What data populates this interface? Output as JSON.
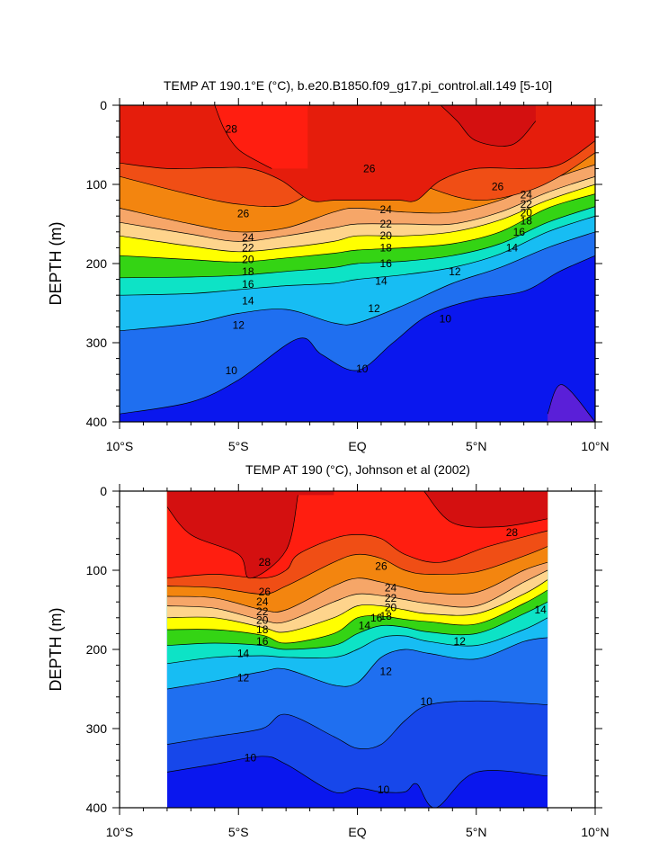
{
  "colors": {
    "levels": [
      "#5a1fd8",
      "#0a17ee",
      "#1747ea",
      "#1f6ff0",
      "#1c98ef",
      "#17bdf3",
      "#11dbee",
      "#0de3c6",
      "#10d673",
      "#34d414",
      "#9bdc15",
      "#ffff00",
      "#ffe36b",
      "#fed48c",
      "#f7bd8c",
      "#f6a668",
      "#f5933c",
      "#f3850f",
      "#f07820",
      "#f04e15",
      "#e51d0c",
      "#ff1e10",
      "#d41010"
    ]
  },
  "chart_data": [
    {
      "type": "contour",
      "title": "TEMP AT 190.1°E (°C), b.e20.B1850.f09_g17.pi_control.all.149 [5-10]",
      "xlabel": "",
      "ylabel": "DEPTH (m)",
      "xlim": [
        -10,
        10
      ],
      "ylim": [
        400,
        0
      ],
      "x_ticks": [
        -10,
        -5,
        0,
        5,
        10
      ],
      "x_tick_labels": [
        "10°S",
        "5°S",
        "EQ",
        "5°N",
        "10°N"
      ],
      "y_ticks": [
        0,
        100,
        200,
        300,
        400
      ],
      "y_tick_labels": [
        "0",
        "100",
        "200",
        "300",
        "400"
      ],
      "data_extent_x": [
        -10,
        10
      ],
      "levels": [
        9,
        10,
        11,
        12,
        13,
        14,
        15,
        16,
        17,
        18,
        19,
        20,
        21,
        22,
        23,
        24,
        25,
        26,
        27,
        28
      ],
      "contours": [
        {
          "level": 28,
          "x": [
            -6,
            -5.6,
            -5,
            -4,
            -3.6
          ],
          "y": [
            0,
            30,
            56,
            74,
            80
          ],
          "x2": [
            3.5,
            4.2,
            5,
            6.5,
            7.5
          ],
          "y2": [
            0,
            20,
            45,
            50,
            20
          ]
        },
        {
          "level": 27,
          "x": [
            -10,
            -8,
            -6,
            -4.5,
            -3.2,
            -2,
            -1,
            0,
            1,
            1.8,
            2.5,
            3.5,
            5,
            7,
            8.5,
            10
          ],
          "y": [
            73,
            80,
            79,
            80,
            95,
            120,
            120,
            120,
            120,
            120,
            120,
            95,
            80,
            80,
            75,
            45
          ]
        },
        {
          "level": 26,
          "x": [
            -10,
            -7,
            -5,
            -3,
            -1.5,
            -0.5,
            0.5,
            1.5,
            3,
            5,
            7,
            8.5,
            10
          ],
          "y": [
            90,
            113,
            125,
            126,
            100,
            85,
            78,
            82,
            104,
            120,
            110,
            90,
            60
          ]
        },
        {
          "level": 24,
          "x": [
            -10,
            -7,
            -5,
            -3,
            -1,
            0,
            2,
            4,
            6,
            8,
            10
          ],
          "y": [
            130,
            150,
            160,
            155,
            135,
            130,
            135,
            135,
            120,
            95,
            75
          ]
        },
        {
          "level": 22,
          "x": [
            -10,
            -7,
            -5,
            -3,
            -1,
            0,
            2,
            4,
            6,
            8,
            10
          ],
          "y": [
            148,
            163,
            172,
            165,
            155,
            150,
            150,
            150,
            135,
            110,
            90
          ]
        },
        {
          "level": 20,
          "x": [
            -10,
            -7,
            -5,
            -3,
            -1,
            0,
            2,
            4,
            6,
            8,
            10
          ],
          "y": [
            165,
            178,
            185,
            180,
            172,
            165,
            165,
            160,
            145,
            120,
            100
          ]
        },
        {
          "level": 18,
          "x": [
            -10,
            -7,
            -5,
            -3,
            -1,
            0,
            2,
            4,
            6,
            8,
            10
          ],
          "y": [
            190,
            195,
            198,
            193,
            187,
            183,
            180,
            175,
            160,
            130,
            112
          ]
        },
        {
          "level": 16,
          "x": [
            -10,
            -7,
            -5,
            -3,
            -1,
            0,
            2,
            4,
            6,
            8,
            10
          ],
          "y": [
            218,
            217,
            215,
            210,
            205,
            200,
            197,
            190,
            175,
            148,
            128
          ]
        },
        {
          "level": 14,
          "x": [
            -10,
            -7,
            -5,
            -3,
            -1,
            0,
            2,
            4,
            6,
            8,
            10
          ],
          "y": [
            240,
            238,
            233,
            228,
            225,
            220,
            214,
            205,
            188,
            160,
            140
          ]
        },
        {
          "level": 12,
          "x": [
            -10,
            -7,
            -5,
            -3,
            -1,
            0,
            2,
            4,
            6,
            8,
            10
          ],
          "y": [
            285,
            276,
            263,
            258,
            275,
            275,
            252,
            225,
            205,
            180,
            160
          ]
        },
        {
          "level": 10,
          "x": [
            -10,
            -7,
            -5,
            -2.5,
            -1.5,
            0,
            1.5,
            3,
            5,
            7,
            8.5,
            10
          ],
          "y": [
            390,
            375,
            347,
            295,
            315,
            335,
            300,
            265,
            245,
            235,
            210,
            190
          ]
        },
        {
          "level": 9,
          "x": [
            8,
            8.6,
            10
          ],
          "y": [
            390,
            353,
            400
          ]
        }
      ],
      "contour_labels": [
        {
          "text": "28",
          "x": -5.3,
          "y": 30
        },
        {
          "text": "26",
          "x": 0.5,
          "y": 80
        },
        {
          "text": "26",
          "x": 5.9,
          "y": 103
        },
        {
          "text": "26",
          "x": -4.8,
          "y": 137
        },
        {
          "text": "24",
          "x": 7.1,
          "y": 113
        },
        {
          "text": "22",
          "x": 7.1,
          "y": 125
        },
        {
          "text": "20",
          "x": 7.1,
          "y": 136
        },
        {
          "text": "18",
          "x": 7.1,
          "y": 146
        },
        {
          "text": "16",
          "x": 6.8,
          "y": 160
        },
        {
          "text": "14",
          "x": 6.5,
          "y": 180
        },
        {
          "text": "12",
          "x": 4.1,
          "y": 210
        },
        {
          "text": "10",
          "x": 3.7,
          "y": 270
        },
        {
          "text": "24",
          "x": 1.2,
          "y": 132
        },
        {
          "text": "22",
          "x": 1.2,
          "y": 150
        },
        {
          "text": "20",
          "x": 1.2,
          "y": 165
        },
        {
          "text": "18",
          "x": 1.2,
          "y": 180
        },
        {
          "text": "16",
          "x": 1.2,
          "y": 200
        },
        {
          "text": "14",
          "x": 1.0,
          "y": 222
        },
        {
          "text": "12",
          "x": 0.7,
          "y": 257
        },
        {
          "text": "10",
          "x": 0.2,
          "y": 333
        },
        {
          "text": "24",
          "x": -4.6,
          "y": 167
        },
        {
          "text": "22",
          "x": -4.6,
          "y": 180
        },
        {
          "text": "20",
          "x": -4.6,
          "y": 195
        },
        {
          "text": "18",
          "x": -4.6,
          "y": 210
        },
        {
          "text": "16",
          "x": -4.6,
          "y": 226
        },
        {
          "text": "14",
          "x": -4.6,
          "y": 247
        },
        {
          "text": "12",
          "x": -5.0,
          "y": 278
        },
        {
          "text": "10",
          "x": -5.3,
          "y": 335
        }
      ]
    },
    {
      "type": "contour",
      "title": "TEMP AT 190 (°C), Johnson et al (2002)",
      "xlabel": "",
      "ylabel": "DEPTH (m)",
      "xlim": [
        -10,
        10
      ],
      "ylim": [
        400,
        0
      ],
      "x_ticks": [
        -10,
        -5,
        0,
        5,
        10
      ],
      "x_tick_labels": [
        "10°S",
        "5°S",
        "EQ",
        "5°N",
        "10°N"
      ],
      "y_ticks": [
        0,
        100,
        200,
        300,
        400
      ],
      "y_tick_labels": [
        "0",
        "100",
        "200",
        "300",
        "400"
      ],
      "data_extent_x": [
        -8,
        8
      ],
      "levels": [
        9,
        10,
        11,
        12,
        13,
        14,
        15,
        16,
        17,
        18,
        19,
        20,
        21,
        22,
        23,
        24,
        25,
        26,
        27,
        28,
        29
      ],
      "contours": [
        {
          "level": 29,
          "x": [
            -8,
            -7,
            -5,
            -4.5,
            -3,
            -2.5
          ],
          "y": [
            20,
            55,
            80,
            110,
            75,
            5
          ],
          "x2": [
            2.8,
            4,
            6,
            8
          ],
          "y2": [
            0,
            40,
            45,
            35
          ]
        },
        {
          "level": 28,
          "x": [
            -8,
            -6,
            -4,
            -3,
            -2.5,
            -1,
            0,
            1,
            2,
            3.5,
            5.5,
            8
          ],
          "y": [
            110,
            105,
            110,
            100,
            80,
            60,
            55,
            60,
            80,
            90,
            70,
            50
          ]
        },
        {
          "level": 26,
          "x": [
            -8,
            -6,
            -4,
            -3,
            -1,
            0,
            1,
            2,
            3,
            5,
            7,
            8
          ],
          "y": [
            120,
            122,
            130,
            120,
            90,
            80,
            85,
            100,
            105,
            102,
            82,
            70
          ]
        },
        {
          "level": 24,
          "x": [
            -8,
            -6,
            -4,
            -3,
            -1,
            0,
            1,
            2,
            3,
            5,
            7,
            8
          ],
          "y": [
            133,
            135,
            150,
            150,
            120,
            110,
            115,
            122,
            128,
            128,
            100,
            90
          ]
        },
        {
          "level": 22,
          "x": [
            -8,
            -6,
            -4,
            -3,
            -1,
            0,
            1,
            2,
            3,
            5,
            7,
            8
          ],
          "y": [
            145,
            148,
            163,
            165,
            140,
            130,
            132,
            137,
            142,
            145,
            115,
            100
          ]
        },
        {
          "level": 20,
          "x": [
            -8,
            -6,
            -4,
            -3,
            -1,
            0,
            1,
            2,
            3,
            5,
            7,
            8
          ],
          "y": [
            160,
            160,
            172,
            178,
            160,
            145,
            145,
            150,
            155,
            155,
            130,
            112
          ]
        },
        {
          "level": 18,
          "x": [
            -8,
            -6,
            -4,
            -3,
            -1,
            0,
            1,
            2,
            3,
            5,
            7,
            8
          ],
          "y": [
            175,
            175,
            182,
            192,
            180,
            160,
            158,
            162,
            165,
            168,
            142,
            125
          ]
        },
        {
          "level": 16,
          "x": [
            -8,
            -6,
            -4,
            -3,
            -1,
            0,
            1,
            2,
            3,
            5,
            7,
            8
          ],
          "y": [
            195,
            192,
            195,
            200,
            195,
            180,
            170,
            172,
            178,
            180,
            155,
            140
          ]
        },
        {
          "level": 14,
          "x": [
            -8,
            -6,
            -4,
            -3,
            -1,
            0,
            1,
            2,
            3,
            5,
            7,
            8
          ],
          "y": [
            218,
            210,
            208,
            210,
            210,
            200,
            185,
            183,
            190,
            195,
            175,
            160
          ]
        },
        {
          "level": 12,
          "x": [
            -8,
            -6,
            -4,
            -3,
            -1,
            0,
            1,
            2,
            3,
            5,
            7,
            8
          ],
          "y": [
            250,
            240,
            228,
            225,
            245,
            242,
            210,
            200,
            205,
            212,
            190,
            185
          ]
        },
        {
          "level": 10,
          "x": [
            -8,
            -6,
            -4,
            -3,
            -1,
            0,
            1,
            2,
            3,
            5,
            7,
            8
          ],
          "y": [
            320,
            310,
            300,
            282,
            310,
            325,
            320,
            290,
            270,
            265,
            268,
            270
          ]
        },
        {
          "level": 9,
          "x": [
            -8,
            -6,
            -4,
            -3,
            -1,
            0,
            1,
            2,
            2.5,
            3.3,
            5,
            8
          ],
          "y": [
            355,
            345,
            335,
            345,
            380,
            375,
            380,
            380,
            370,
            400,
            355,
            360
          ]
        }
      ],
      "contour_labels": [
        {
          "text": "28",
          "x": 6.5,
          "y": 52
        },
        {
          "text": "28",
          "x": -3.9,
          "y": 90
        },
        {
          "text": "26",
          "x": 1.0,
          "y": 95
        },
        {
          "text": "26",
          "x": -3.9,
          "y": 127
        },
        {
          "text": "24",
          "x": 1.4,
          "y": 122
        },
        {
          "text": "22",
          "x": 1.4,
          "y": 135
        },
        {
          "text": "20",
          "x": 1.4,
          "y": 147
        },
        {
          "text": "18",
          "x": 1.2,
          "y": 158
        },
        {
          "text": "16",
          "x": 0.8,
          "y": 160
        },
        {
          "text": "14",
          "x": 0.3,
          "y": 170
        },
        {
          "text": "24",
          "x": -4.0,
          "y": 140
        },
        {
          "text": "22",
          "x": -4.0,
          "y": 152
        },
        {
          "text": "20",
          "x": -4.0,
          "y": 163
        },
        {
          "text": "18",
          "x": -4.0,
          "y": 175
        },
        {
          "text": "16",
          "x": -4.0,
          "y": 190
        },
        {
          "text": "14",
          "x": -4.8,
          "y": 205
        },
        {
          "text": "12",
          "x": -4.8,
          "y": 236
        },
        {
          "text": "12",
          "x": 1.2,
          "y": 228
        },
        {
          "text": "14",
          "x": 7.7,
          "y": 150
        },
        {
          "text": "12",
          "x": 4.3,
          "y": 190
        },
        {
          "text": "10",
          "x": 2.9,
          "y": 266
        },
        {
          "text": "10",
          "x": -4.5,
          "y": 337
        },
        {
          "text": "10",
          "x": 1.1,
          "y": 377
        }
      ]
    }
  ]
}
